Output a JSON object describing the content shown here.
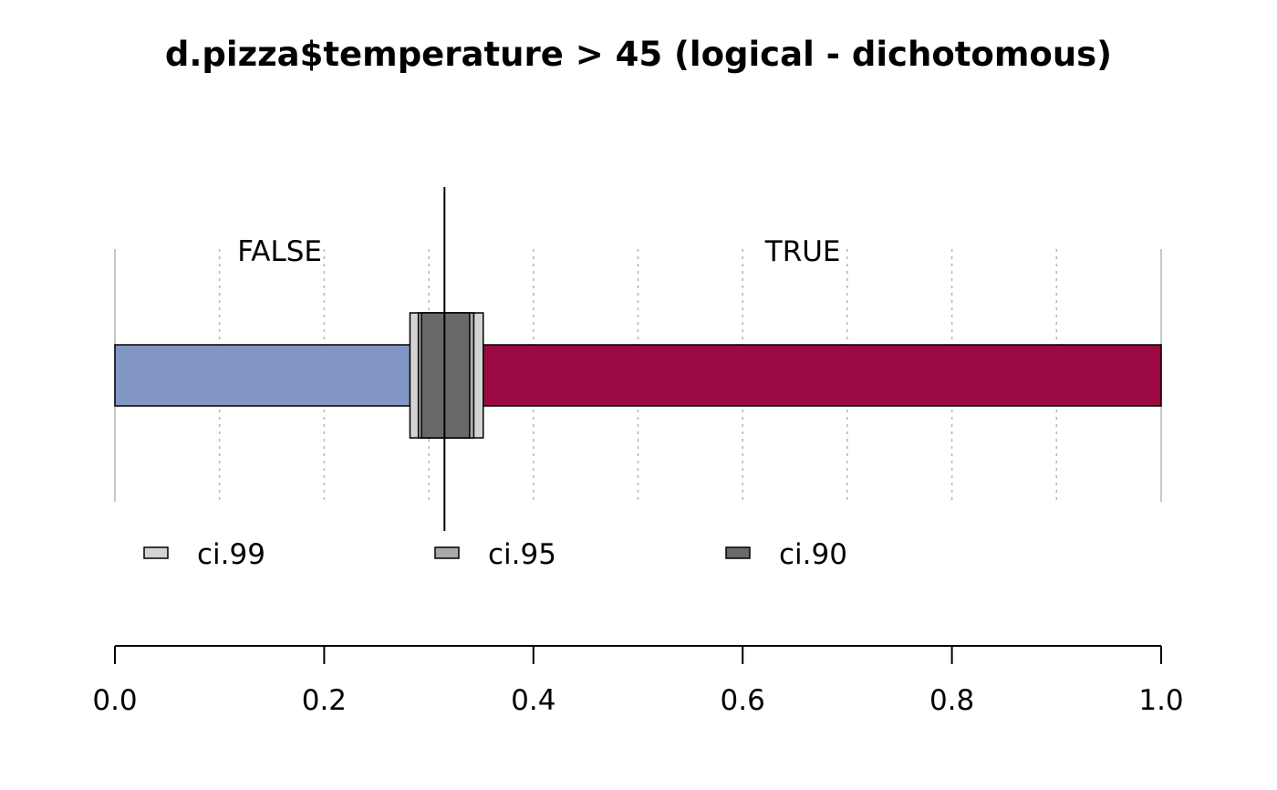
{
  "chart_data": {
    "type": "bar",
    "title": "d.pizza$temperature > 45 (logical - dichotomous)",
    "categories": [
      "FALSE",
      "TRUE"
    ],
    "proportions": [
      0.315,
      0.685
    ],
    "colors": {
      "FALSE": "#8296C4",
      "TRUE": "#9A0941",
      "ci99": "#d3d3d3",
      "ci95": "#a9a9a9",
      "ci90": "#696969"
    },
    "estimate": 0.315,
    "confidence_intervals": [
      {
        "name": "ci.99",
        "lower": 0.282,
        "upper": 0.352
      },
      {
        "name": "ci.95",
        "lower": 0.29,
        "upper": 0.343
      },
      {
        "name": "ci.90",
        "lower": 0.293,
        "upper": 0.339
      }
    ],
    "xlim": [
      0,
      1
    ],
    "ticks": [
      "0.0",
      "0.2",
      "0.4",
      "0.6",
      "0.8",
      "1.0"
    ],
    "tick_values": [
      0,
      0.2,
      0.4,
      0.6,
      0.8,
      1.0
    ],
    "grid": true,
    "legend": [
      "ci.99",
      "ci.95",
      "ci.90"
    ]
  }
}
